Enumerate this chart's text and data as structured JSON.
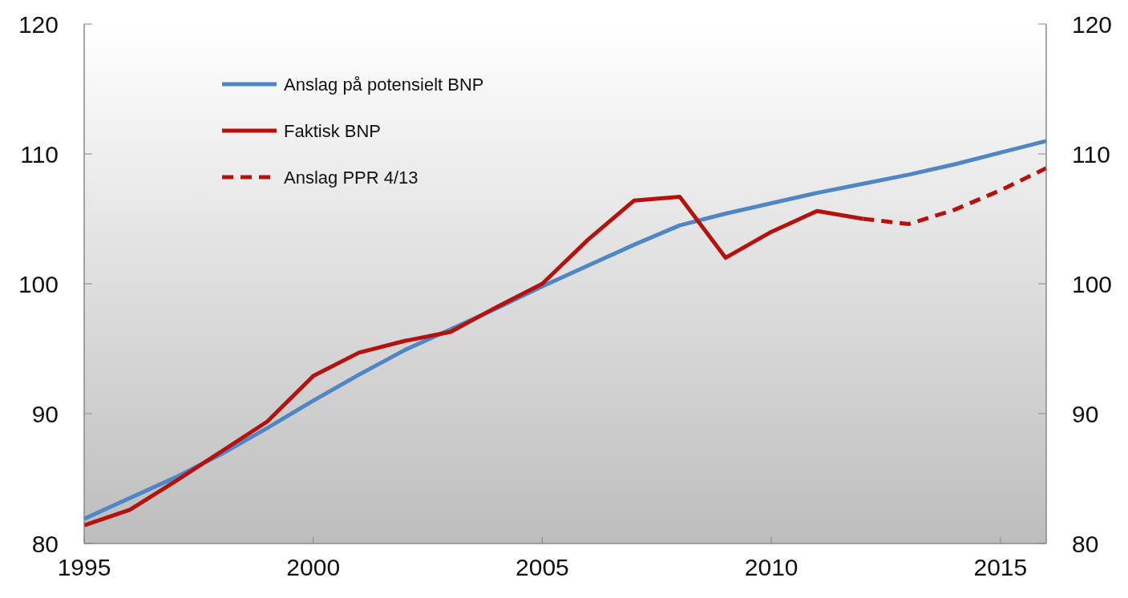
{
  "chart_data": {
    "type": "line",
    "x": [
      1995,
      1996,
      1997,
      1998,
      1999,
      2000,
      2001,
      2002,
      2003,
      2004,
      2005,
      2006,
      2007,
      2008,
      2009,
      2010,
      2011,
      2012,
      2013,
      2014,
      2015,
      2016
    ],
    "series": [
      {
        "name": "Anslag på potensielt BNP",
        "color": "#4f86c6",
        "values": [
          81.9,
          83.5,
          85.1,
          86.9,
          88.9,
          91.0,
          93.0,
          94.9,
          96.5,
          98.1,
          99.8,
          101.4,
          103.0,
          104.5,
          105.4,
          106.2,
          107.0,
          107.7,
          108.4,
          109.2,
          110.1,
          111.0
        ]
      },
      {
        "name": "Faktisk BNP",
        "color": "#b5120e",
        "x": [
          1995,
          1996,
          1997,
          1998,
          1999,
          2000,
          2001,
          2002,
          2003,
          2004,
          2005,
          2006,
          2007,
          2008,
          2009,
          2010,
          2011,
          2012
        ],
        "values": [
          81.4,
          82.6,
          84.8,
          87.1,
          89.4,
          92.9,
          94.7,
          95.6,
          96.3,
          98.2,
          100.0,
          103.4,
          106.4,
          106.7,
          102.0,
          104.0,
          105.6,
          105.0
        ]
      },
      {
        "name": "Anslag PPR 4/13",
        "color": "#b5120e",
        "line_style": "dashed",
        "x": [
          2012,
          2013,
          2014,
          2015,
          2016
        ],
        "values": [
          105.0,
          104.6,
          105.7,
          107.2,
          108.9
        ]
      }
    ],
    "xlim": [
      1995,
      2016
    ],
    "xticks": [
      1995,
      2000,
      2005,
      2010,
      2015
    ],
    "ylim": [
      80,
      120
    ],
    "yticks": [
      80,
      90,
      100,
      110,
      120
    ],
    "y2lim": [
      80,
      120
    ],
    "y2ticks": [
      80,
      90,
      100,
      110,
      120
    ],
    "grid": false,
    "legend": "top left",
    "line_style": "solid",
    "marker": "none"
  }
}
